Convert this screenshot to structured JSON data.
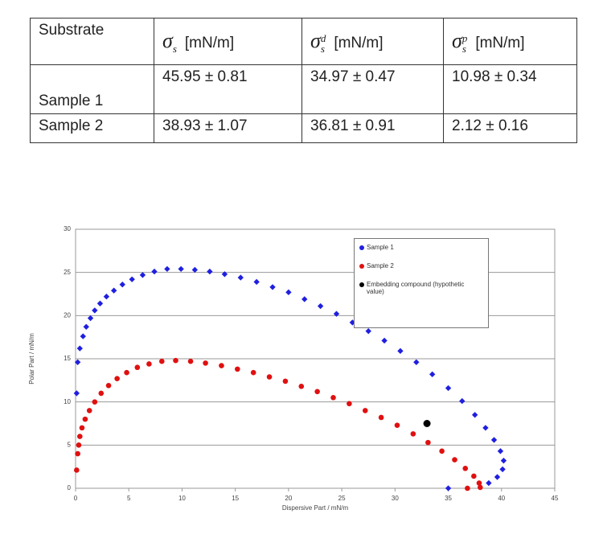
{
  "table": {
    "header": [
      "Substrate",
      {
        "symbol": "σ",
        "sub": "s",
        "unit": "[mN/m]"
      },
      {
        "symbol": "σ",
        "sub": "s",
        "sup": "d",
        "unit": "[mN/m]"
      },
      {
        "symbol": "σ",
        "sub": "s",
        "sup": "p",
        "unit": "[mN/m]"
      }
    ],
    "rows": [
      [
        "Sample  1",
        "45.95 ± 0.81",
        "34.97 ± 0.47",
        "10.98 ± 0.34"
      ],
      [
        "Sample  2",
        "38.93 ± 1.07",
        "36.81 ± 0.91",
        "2.12 ± 0.16"
      ]
    ]
  },
  "chart_data": {
    "type": "scatter",
    "xlabel": "Dispersive Part / mN/m",
    "ylabel": "Polar Part / mN/m",
    "xlim": [
      0,
      45
    ],
    "xticks": [
      0,
      5,
      10,
      15,
      20,
      25,
      30,
      35,
      40,
      45
    ],
    "ylim": [
      0,
      30
    ],
    "yticks": [
      0,
      5,
      10,
      15,
      20,
      25,
      30
    ],
    "grid": true,
    "legend": "upper-right",
    "series": [
      {
        "name": "Sample 1",
        "color": "#1f1fe0",
        "x": [
          0.1,
          0.2,
          0.4,
          0.7,
          1,
          1.4,
          1.8,
          2.3,
          2.9,
          3.6,
          4.4,
          5.3,
          6.3,
          7.4,
          8.6,
          9.9,
          11.2,
          12.6,
          14,
          15.5,
          17,
          18.5,
          20,
          21.5,
          23,
          24.5,
          26,
          27.5,
          29,
          30.5,
          32,
          33.5,
          35,
          36.3,
          37.5,
          38.5,
          39.3,
          39.9,
          40.2,
          40.1,
          39.6,
          38.8,
          35
        ],
        "values": [
          11,
          14.6,
          16.2,
          17.6,
          18.7,
          19.7,
          20.6,
          21.4,
          22.2,
          22.9,
          23.6,
          24.2,
          24.7,
          25.1,
          25.4,
          25.4,
          25.3,
          25.1,
          24.8,
          24.4,
          23.9,
          23.3,
          22.7,
          21.9,
          21.1,
          20.2,
          19.2,
          18.2,
          17.1,
          15.9,
          14.6,
          13.2,
          11.6,
          10.1,
          8.5,
          7,
          5.6,
          4.3,
          3.2,
          2.2,
          1.3,
          0.6,
          0
        ]
      },
      {
        "name": "Sample 2",
        "color": "#e01010",
        "x": [
          0.1,
          0.2,
          0.3,
          0.4,
          0.6,
          0.9,
          1.3,
          1.8,
          2.4,
          3.1,
          3.9,
          4.8,
          5.8,
          6.9,
          8.1,
          9.4,
          10.8,
          12.2,
          13.7,
          15.2,
          16.7,
          18.2,
          19.7,
          21.2,
          22.7,
          24.2,
          25.7,
          27.2,
          28.7,
          30.2,
          31.7,
          33.1,
          34.4,
          35.6,
          36.6,
          37.4,
          37.9,
          38,
          36.8
        ],
        "values": [
          2.1,
          4,
          5,
          6,
          7,
          8,
          9,
          10,
          11,
          11.9,
          12.7,
          13.4,
          14,
          14.4,
          14.7,
          14.8,
          14.7,
          14.5,
          14.2,
          13.8,
          13.4,
          12.9,
          12.4,
          11.8,
          11.2,
          10.5,
          9.8,
          9,
          8.2,
          7.3,
          6.3,
          5.3,
          4.3,
          3.3,
          2.3,
          1.4,
          0.6,
          0.1,
          0
        ]
      },
      {
        "name": "Embedding compound (hypothetic value)",
        "color": "#000000",
        "x": [
          33
        ],
        "values": [
          7.5
        ]
      }
    ]
  }
}
